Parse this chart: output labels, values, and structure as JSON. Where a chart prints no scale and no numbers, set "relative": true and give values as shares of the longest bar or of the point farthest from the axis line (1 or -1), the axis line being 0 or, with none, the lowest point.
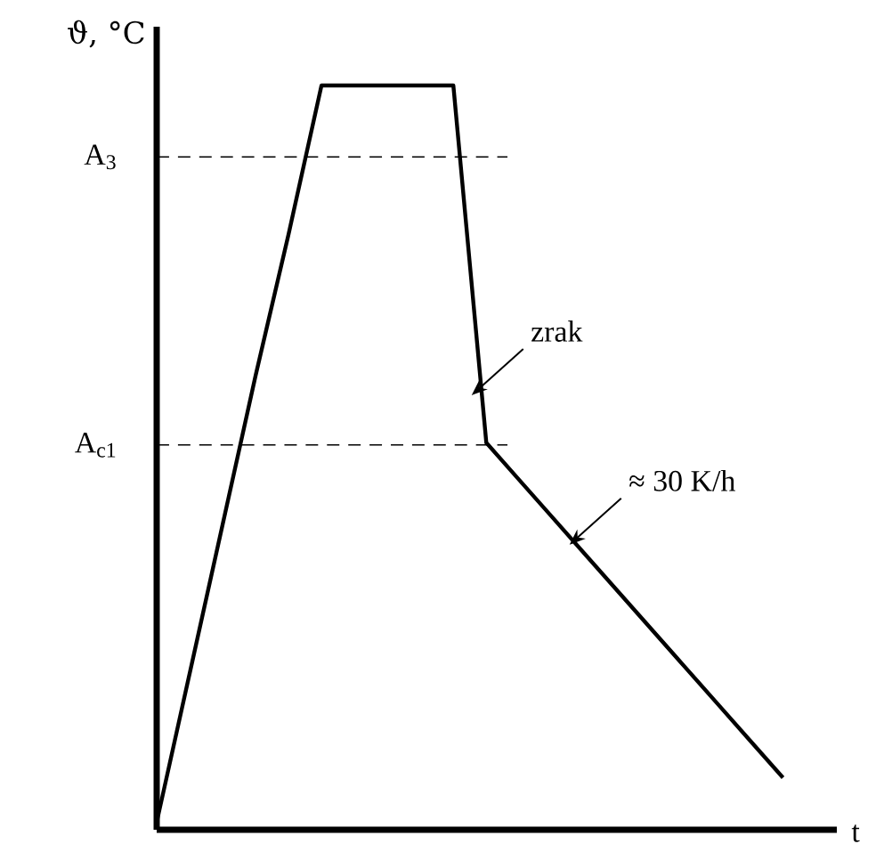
{
  "chart_data": {
    "type": "line",
    "relative": true,
    "xlabel": "t",
    "ylabel": "ϑ, °C",
    "tick_labels": false,
    "categories": [
      null,
      null,
      null,
      null,
      null,
      null,
      null,
      null,
      null,
      null,
      null,
      null,
      null,
      null,
      null,
      null,
      null,
      null,
      null,
      null
    ],
    "series": [
      {
        "color": "#000000",
        "values": [
          0.01,
          0.21,
          0.41,
          0.61,
          0.8,
          1,
          1,
          1,
          1,
          1,
          0.52,
          0.47,
          0.42,
          0.37,
          0.32,
          0.27,
          0.22,
          0.17,
          0.12,
          0.07
        ]
      }
    ],
    "ref_lines": [
      {
        "axis": "y",
        "value": 0.904,
        "label": "A$_{3}$",
        "line_style": "dashed"
      },
      {
        "axis": "y",
        "value": 0.517,
        "label": "A$_{c1}$",
        "line_style": "dashed"
      }
    ],
    "annotations": [
      "zrak",
      "≈ 30 K/h"
    ]
  }
}
